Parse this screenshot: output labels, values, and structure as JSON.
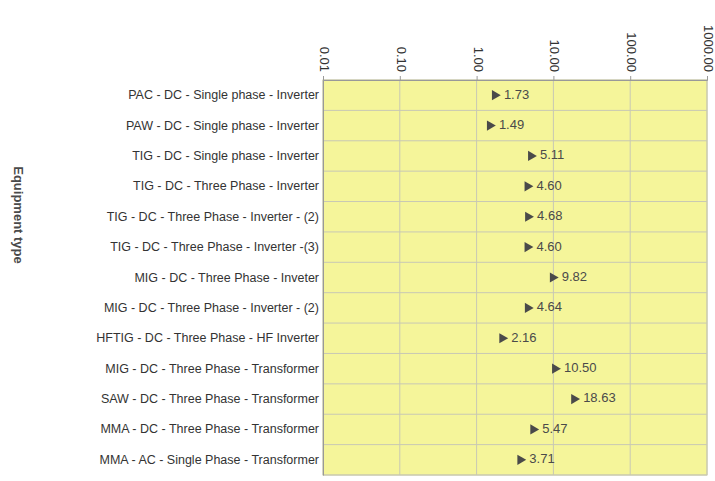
{
  "chart_data": {
    "type": "scatter",
    "orientation": "horizontal",
    "log": "x",
    "grid": true,
    "marker": "triangle",
    "color": "#4a4a4a",
    "data_labels": true,
    "y_label": "Equipment type",
    "categories": [
      "PAC - DC - Single phase - Inverter",
      "PAW - DC - Single phase - Inverter",
      "TIG - DC - Single phase - Inverter",
      "TIG - DC - Three Phase - Inverter",
      "TIG - DC - Three Phase - Inverter - (2)",
      "TIG - DC - Three Phase - Inverter -(3)",
      "MIG - DC - Three Phase - Inveter",
      "MIG - DC - Three Phase - Inverter - (2)",
      "HFTIG - DC - Three Phase - HF Inverter",
      "MIG - DC - Three Phase - Transformer",
      "SAW - DC - Three Phase - Transformer",
      "MMA - DC - Three Phase - Transformer",
      "MMA - AC - Single Phase - Transformer"
    ],
    "values": [
      1.73,
      1.49,
      5.11,
      4.6,
      4.68,
      4.6,
      9.82,
      4.64,
      2.16,
      10.5,
      18.63,
      5.47,
      3.71
    ],
    "value_labels": [
      "1.73",
      "1.49",
      "5.11",
      "4.60",
      "4.68",
      "4.60",
      "9.82",
      "4.64",
      "2.16",
      "10.50",
      "18.63",
      "5.47",
      "3.71"
    ],
    "xlim": [
      0.01,
      1000
    ],
    "xticks": [
      0.01,
      {
        "value": 0.1,
        "label": "0.10"
      },
      {
        "value": 1,
        "label": "1.00"
      },
      {
        "value": 10,
        "label": "10.00"
      },
      {
        "value": 100,
        "label": "100.00"
      },
      {
        "value": 1000,
        "label": "1000.00"
      }
    ]
  }
}
